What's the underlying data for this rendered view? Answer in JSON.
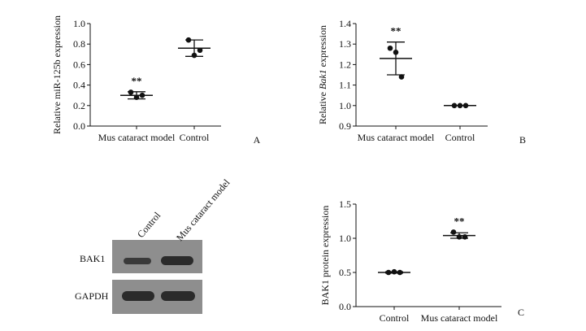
{
  "panels": [
    {
      "letter": "A",
      "chart_data": {
        "type": "scatter",
        "ylabel": "Relative miR-125b expression",
        "ylim": [
          0.0,
          1.0
        ],
        "yticks": [
          "0.0",
          "0.2",
          "0.4",
          "0.6",
          "0.8",
          "1.0"
        ],
        "categories": [
          "Mus cataract model",
          "Control"
        ],
        "points": [
          [
            0.33,
            0.28,
            0.3
          ],
          [
            0.84,
            0.69,
            0.74
          ]
        ],
        "mean": [
          0.3,
          0.76
        ],
        "sd": [
          0.035,
          0.08
        ],
        "significance": [
          "**",
          ""
        ]
      }
    },
    {
      "letter": "B",
      "chart_data": {
        "type": "scatter",
        "ylabel_parts": [
          "Relative ",
          "Bak1",
          " expression"
        ],
        "ylim": [
          0.9,
          1.4
        ],
        "yticks": [
          "0.9",
          "1.0",
          "1.1",
          "1.2",
          "1.3",
          "1.4"
        ],
        "categories": [
          "Mus cataract model",
          "Control"
        ],
        "points": [
          [
            1.28,
            1.26,
            1.14
          ],
          [
            1.0,
            1.0,
            1.0
          ]
        ],
        "mean": [
          1.23,
          1.0
        ],
        "sd": [
          0.08,
          0.002
        ],
        "significance": [
          "**",
          ""
        ]
      }
    },
    {
      "letter": "C",
      "chart_data": {
        "type": "scatter",
        "ylabel": "BAK1 protein expression",
        "ylim": [
          0.0,
          1.5
        ],
        "yticks": [
          "0.0",
          "0.5",
          "1.0",
          "1.5"
        ],
        "categories": [
          "Control",
          "Mus cataract model"
        ],
        "points": [
          [
            0.5,
            0.51,
            0.5
          ],
          [
            1.09,
            1.02,
            1.02
          ]
        ],
        "mean": [
          0.5,
          1.04
        ],
        "sd": [
          0.01,
          0.04
        ],
        "significance": [
          "",
          "**"
        ]
      }
    }
  ],
  "blot": {
    "lanes": [
      "Control",
      "Mus cataract model"
    ],
    "rows": [
      "BAK1",
      "GAPDH"
    ]
  }
}
